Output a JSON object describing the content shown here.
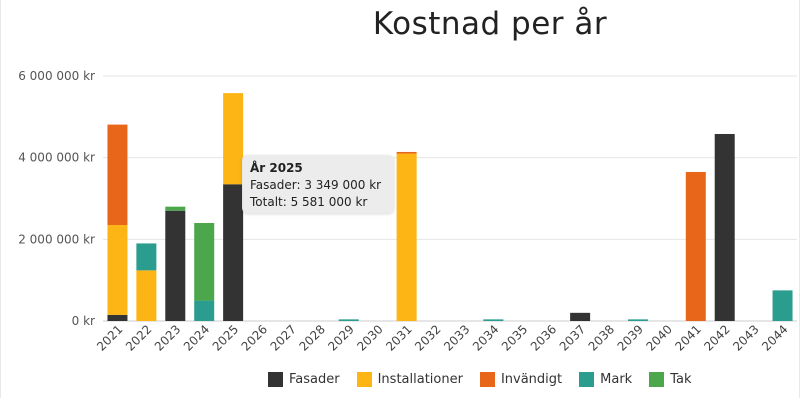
{
  "chart_data": {
    "type": "bar",
    "stacked": true,
    "title": "Kostnad per år",
    "categories": [
      "2021",
      "2022",
      "2023",
      "2024",
      "2025",
      "2026",
      "2027",
      "2028",
      "2029",
      "2030",
      "2031",
      "2032",
      "2033",
      "2034",
      "2035",
      "2036",
      "2037",
      "2038",
      "2039",
      "2040",
      "2041",
      "2042",
      "2043",
      "2044"
    ],
    "series": [
      {
        "name": "Fasader",
        "color": "#333333",
        "values": [
          150000,
          0,
          2700000,
          0,
          3349000,
          0,
          0,
          0,
          0,
          0,
          0,
          0,
          0,
          0,
          0,
          0,
          200000,
          0,
          0,
          0,
          0,
          4580000,
          0,
          0
        ]
      },
      {
        "name": "Installationer",
        "color": "#FDB515",
        "values": [
          2200000,
          1240000,
          0,
          0,
          2232000,
          0,
          0,
          0,
          0,
          0,
          4100000,
          0,
          0,
          0,
          0,
          0,
          0,
          0,
          0,
          0,
          0,
          0,
          0,
          0
        ]
      },
      {
        "name": "Invändigt",
        "color": "#E8661A",
        "values": [
          2460000,
          0,
          0,
          0,
          0,
          0,
          0,
          0,
          0,
          0,
          40000,
          0,
          0,
          0,
          0,
          0,
          0,
          0,
          0,
          0,
          3650000,
          0,
          0,
          0
        ]
      },
      {
        "name": "Mark",
        "color": "#2A9D8F",
        "values": [
          0,
          660000,
          0,
          500000,
          0,
          0,
          0,
          0,
          40000,
          0,
          0,
          0,
          0,
          40000,
          0,
          0,
          0,
          0,
          40000,
          0,
          0,
          0,
          0,
          750000
        ]
      },
      {
        "name": "Tak",
        "color": "#4CA64C",
        "values": [
          0,
          0,
          100000,
          1900000,
          0,
          0,
          0,
          0,
          0,
          0,
          0,
          0,
          0,
          0,
          0,
          0,
          0,
          0,
          0,
          0,
          0,
          0,
          0,
          0
        ]
      }
    ],
    "ylim": [
      0,
      6000000
    ],
    "yticks": [
      0,
      2000000,
      4000000,
      6000000
    ],
    "ytick_labels": [
      "0 kr",
      "2 000 000 kr",
      "4 000 000 kr",
      "6 000 000 kr"
    ],
    "grid": true,
    "legend_position": "bottom",
    "tooltip": {
      "title": "År 2025",
      "line1": "Fasader: 3 349 000 kr",
      "line2": "Totalt: 5 581 000 kr"
    }
  }
}
